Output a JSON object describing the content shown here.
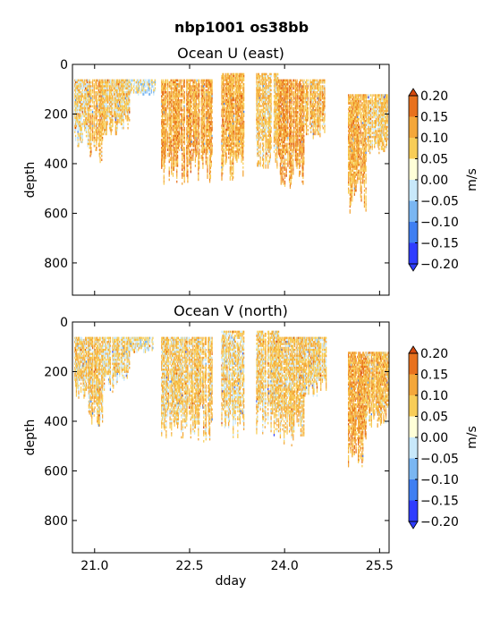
{
  "figure": {
    "suptitle": "nbp1001 os38bb"
  },
  "colorbar": {
    "label": "m/s",
    "levels": [
      -0.2,
      -0.15,
      -0.1,
      -0.05,
      0.0,
      0.05,
      0.1,
      0.15,
      0.2
    ],
    "tick_labels": [
      "−0.20",
      "−0.15",
      "−0.10",
      "−0.05",
      "0.00",
      "0.05",
      "0.10",
      "0.15",
      "0.20"
    ],
    "colors": [
      "#2f3dff",
      "#3f7ff2",
      "#7ab6f2",
      "#c8e8fa",
      "#ffffd8",
      "#f8cd58",
      "#f4a73a",
      "#e8711e",
      "#d5490f"
    ]
  },
  "chart_data": [
    {
      "type": "heatmap",
      "title": "Ocean U (east)",
      "xlabel": "",
      "ylabel": "depth",
      "xlim": [
        20.65,
        25.65
      ],
      "ylim": [
        930,
        0
      ],
      "yticks": [
        0,
        200,
        400,
        600,
        800
      ],
      "ytick_labels": [
        "0",
        "200",
        "400",
        "600",
        "800"
      ],
      "xticks": [
        21.0,
        22.5,
        24.0,
        25.5
      ],
      "xtick_labels": [],
      "data_columns": [
        {
          "x": [
            20.68,
            20.9
          ],
          "depth": [
            60,
            330
          ],
          "bias": 0.02
        },
        {
          "x": [
            20.9,
            21.12
          ],
          "depth": [
            60,
            420
          ],
          "bias": 0.05
        },
        {
          "x": [
            21.12,
            21.35
          ],
          "depth": [
            60,
            290
          ],
          "bias": 0.04
        },
        {
          "x": [
            21.35,
            21.55
          ],
          "depth": [
            60,
            260
          ],
          "bias": 0.03
        },
        {
          "x": [
            21.55,
            21.72
          ],
          "depth": [
            60,
            120
          ],
          "bias": 0.0
        },
        {
          "x": [
            21.72,
            21.95
          ],
          "depth": [
            60,
            120
          ],
          "bias": -0.02
        },
        {
          "x": [
            22.05,
            22.45
          ],
          "depth": [
            60,
            480
          ],
          "bias": 0.07
        },
        {
          "x": [
            22.45,
            22.85
          ],
          "depth": [
            60,
            480
          ],
          "bias": 0.07
        },
        {
          "x": [
            23.0,
            23.35
          ],
          "depth": [
            35,
            470
          ],
          "bias": 0.06
        },
        {
          "x": [
            23.55,
            23.9
          ],
          "depth": [
            35,
            420
          ],
          "bias": 0.04
        },
        {
          "x": [
            23.9,
            24.3
          ],
          "depth": [
            60,
            500
          ],
          "bias": 0.08
        },
        {
          "x": [
            24.3,
            24.65
          ],
          "depth": [
            60,
            300
          ],
          "bias": 0.05
        },
        {
          "x": [
            25.0,
            25.28
          ],
          "depth": [
            120,
            600
          ],
          "bias": 0.06
        },
        {
          "x": [
            25.28,
            25.65
          ],
          "depth": [
            120,
            360
          ],
          "bias": 0.04
        }
      ]
    },
    {
      "type": "heatmap",
      "title": "Ocean V (north)",
      "xlabel": "dday",
      "ylabel": "depth",
      "xlim": [
        20.65,
        25.65
      ],
      "ylim": [
        930,
        0
      ],
      "yticks": [
        0,
        200,
        400,
        600,
        800
      ],
      "ytick_labels": [
        "0",
        "200",
        "400",
        "600",
        "800"
      ],
      "xticks": [
        21.0,
        22.5,
        24.0,
        25.5
      ],
      "xtick_labels": [
        "21.0",
        "22.5",
        "24.0",
        "25.5"
      ],
      "data_columns": [
        {
          "x": [
            20.68,
            20.9
          ],
          "depth": [
            60,
            310
          ],
          "bias": 0.03
        },
        {
          "x": [
            20.9,
            21.12
          ],
          "depth": [
            60,
            420
          ],
          "bias": 0.04
        },
        {
          "x": [
            21.12,
            21.35
          ],
          "depth": [
            60,
            280
          ],
          "bias": 0.02
        },
        {
          "x": [
            21.35,
            21.55
          ],
          "depth": [
            60,
            240
          ],
          "bias": 0.02
        },
        {
          "x": [
            21.55,
            21.72
          ],
          "depth": [
            60,
            120
          ],
          "bias": 0.01
        },
        {
          "x": [
            21.72,
            21.95
          ],
          "depth": [
            60,
            120
          ],
          "bias": -0.01
        },
        {
          "x": [
            22.05,
            22.45
          ],
          "depth": [
            60,
            480
          ],
          "bias": 0.03
        },
        {
          "x": [
            22.45,
            22.85
          ],
          "depth": [
            60,
            480
          ],
          "bias": 0.04
        },
        {
          "x": [
            23.0,
            23.35
          ],
          "depth": [
            35,
            470
          ],
          "bias": 0.02
        },
        {
          "x": [
            23.55,
            23.9
          ],
          "depth": [
            35,
            460
          ],
          "bias": 0.03
        },
        {
          "x": [
            23.9,
            24.3
          ],
          "depth": [
            60,
            500
          ],
          "bias": 0.04
        },
        {
          "x": [
            24.3,
            24.65
          ],
          "depth": [
            60,
            300
          ],
          "bias": 0.03
        },
        {
          "x": [
            25.0,
            25.28
          ],
          "depth": [
            120,
            580
          ],
          "bias": 0.07
        },
        {
          "x": [
            25.28,
            25.65
          ],
          "depth": [
            120,
            420
          ],
          "bias": 0.05
        }
      ]
    }
  ]
}
